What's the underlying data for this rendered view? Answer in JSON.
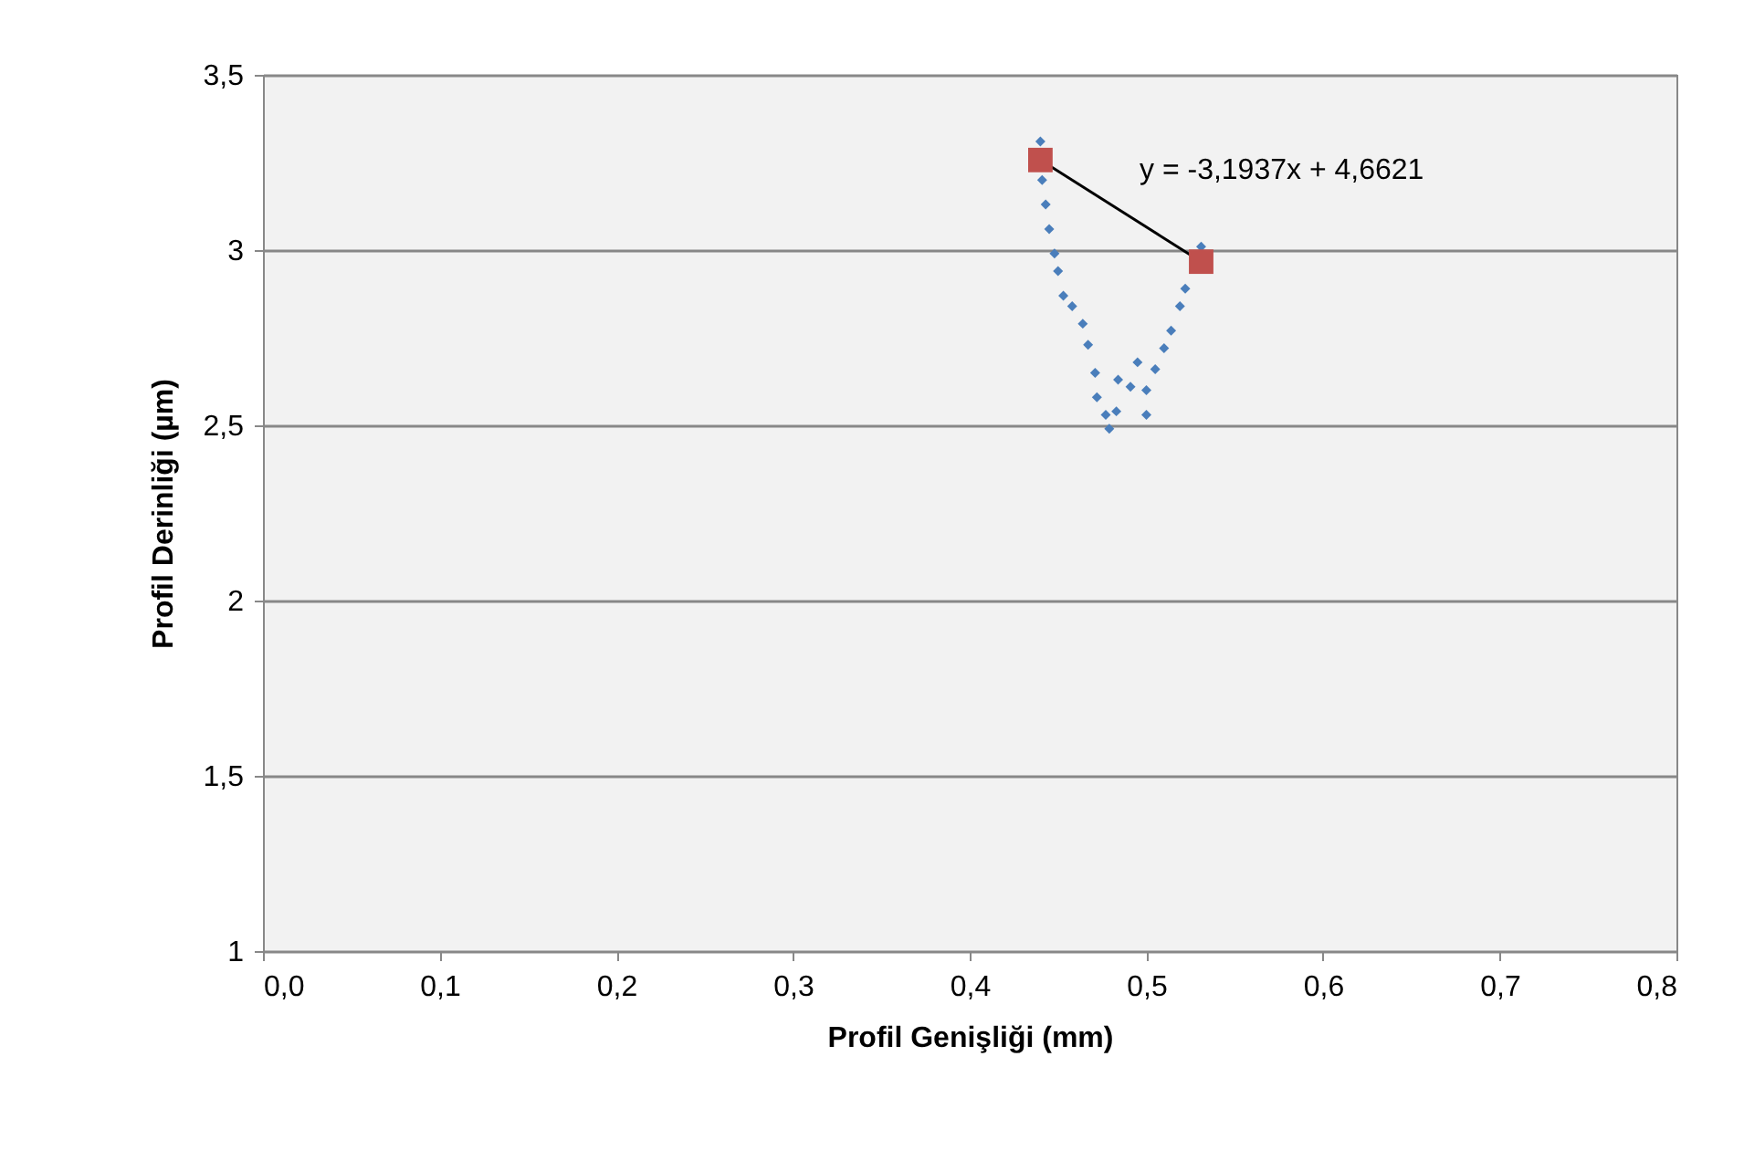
{
  "chart_data": {
    "type": "scatter",
    "xlabel": "Profil Genişliği (mm)",
    "ylabel": "Profil Derinliği (µm)",
    "xlim": [
      0,
      0.8
    ],
    "xticks": [
      {
        "value": 0,
        "label": "0,0"
      },
      {
        "value": 0.1,
        "label": "0,1"
      },
      {
        "value": 0.2,
        "label": "0,2"
      },
      {
        "value": 0.3,
        "label": "0,3"
      },
      {
        "value": 0.4,
        "label": "0,4"
      },
      {
        "value": 0.5,
        "label": "0,5"
      },
      {
        "value": 0.6,
        "label": "0,6"
      },
      {
        "value": 0.7,
        "label": "0,7"
      },
      {
        "value": 0.8,
        "label": "0,8"
      }
    ],
    "ylim": [
      1,
      3.5
    ],
    "yticks": [
      1,
      {
        "value": 1.5,
        "label": "1,5"
      },
      2,
      {
        "value": 2.5,
        "label": "2,5"
      },
      3,
      {
        "value": 3.5,
        "label": "3,5"
      }
    ],
    "grid": "y",
    "series": [
      {
        "marker": "diamond",
        "color": "#4a7ebb",
        "x": [
          0.44,
          0.441,
          0.443,
          0.445,
          0.448,
          0.45,
          0.453,
          0.458,
          0.464,
          0.467,
          0.471,
          0.472,
          0.477,
          0.479,
          0.483,
          0.484,
          0.491,
          0.495,
          0.5,
          0.5,
          0.505,
          0.51,
          0.514,
          0.519,
          0.522,
          0.531
        ],
        "values": [
          3.31,
          3.2,
          3.13,
          3.06,
          2.99,
          2.94,
          2.87,
          2.84,
          2.79,
          2.73,
          2.65,
          2.58,
          2.53,
          2.49,
          2.54,
          2.63,
          2.61,
          2.68,
          2.6,
          2.53,
          2.66,
          2.72,
          2.77,
          2.84,
          2.89,
          3.01
        ]
      },
      {
        "type": "line",
        "color": "#000000",
        "line_style": "solid",
        "x": [
          0.44,
          0.531
        ],
        "values": [
          3.257,
          2.967
        ]
      },
      {
        "type": "scatter",
        "marker": "square",
        "color": "#c0504d",
        "x": [
          0.44,
          0.531
        ],
        "values": [
          3.257,
          2.967
        ]
      }
    ],
    "annotations": [
      "y = -3,1937x + 4,6621"
    ]
  }
}
